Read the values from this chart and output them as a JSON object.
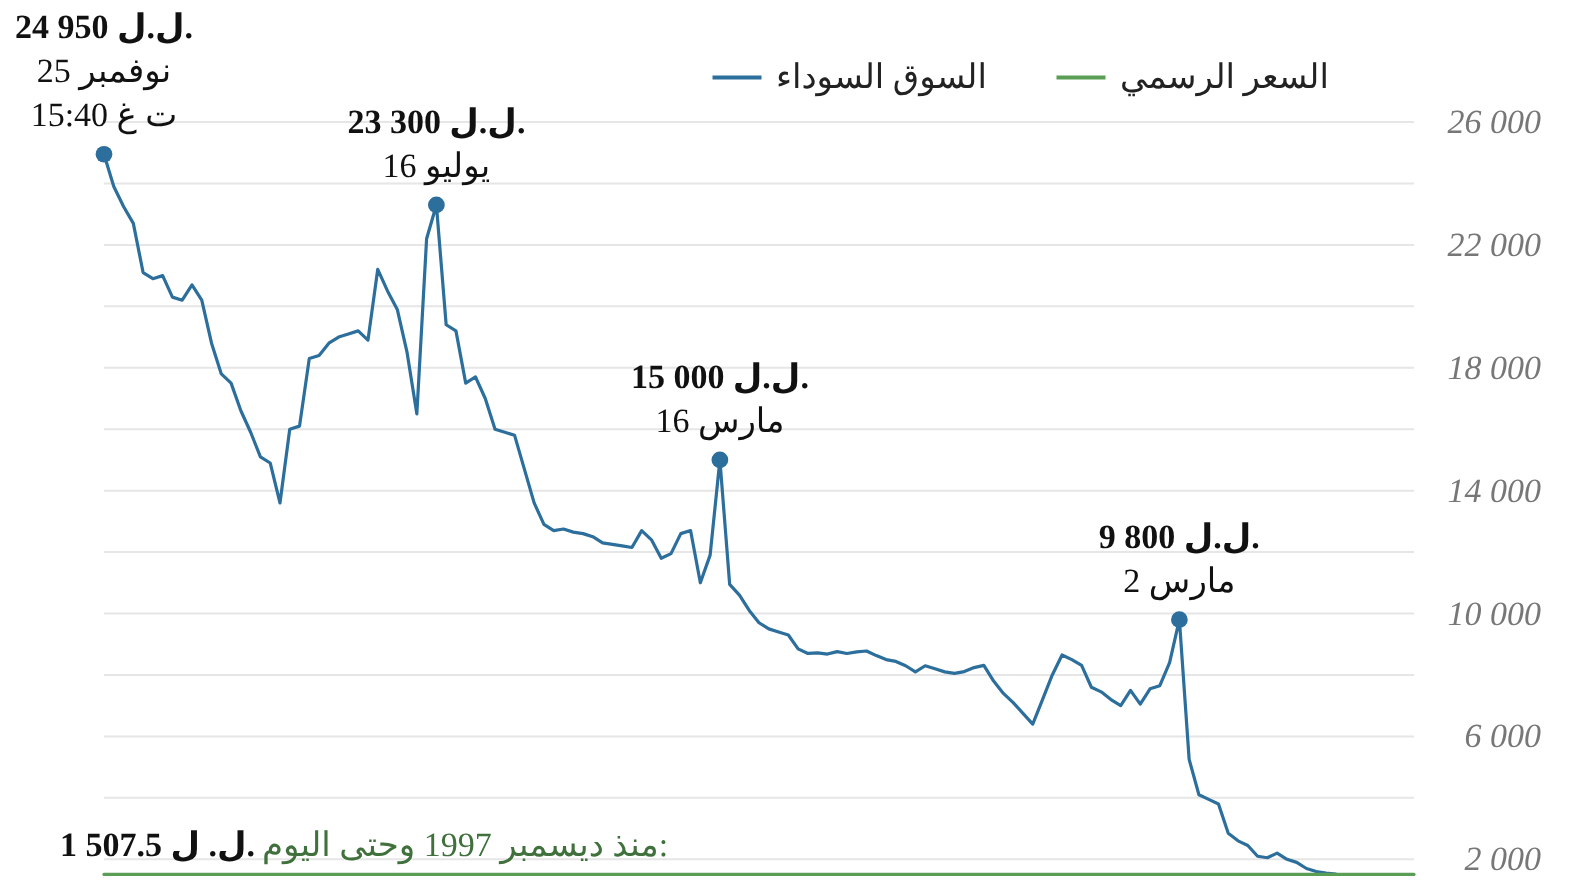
{
  "chart_data": {
    "type": "line",
    "categories": [
      null,
      null,
      null,
      null,
      null,
      null,
      null,
      null,
      null,
      null,
      null,
      null,
      null,
      null,
      null,
      null,
      null,
      null,
      null,
      null,
      null,
      null,
      null,
      null,
      null,
      null,
      null,
      null,
      null,
      null,
      null,
      null,
      null,
      null,
      null,
      null,
      null,
      null,
      null,
      null,
      null,
      null,
      null,
      null,
      null,
      null,
      null,
      null,
      null,
      null,
      null,
      null,
      null,
      null,
      null,
      null,
      null,
      null,
      null,
      null,
      null,
      null,
      null,
      null,
      null,
      null,
      null,
      null,
      null,
      null,
      null,
      null,
      null,
      null,
      null,
      null,
      null,
      null,
      null,
      null,
      null,
      null,
      null,
      null,
      null,
      null,
      null,
      null,
      null,
      null,
      null,
      null,
      null,
      null,
      null,
      null,
      null,
      null,
      null,
      null,
      null,
      null,
      null,
      null,
      null,
      null,
      null,
      null,
      null,
      null,
      null,
      null,
      null,
      null,
      null,
      null,
      null,
      null,
      null,
      null,
      null,
      null,
      null,
      null,
      null,
      null,
      null,
      null,
      null,
      null,
      null,
      null,
      null,
      null,
      null
    ],
    "series": [
      {
        "name": "السوق السوداء",
        "color": "#2c6e9c",
        "values": [
          24950,
          23900,
          23250,
          22700,
          21100,
          20900,
          21000,
          20300,
          20200,
          20700,
          20200,
          18800,
          17800,
          17500,
          16600,
          15900,
          15100,
          14900,
          13600,
          16000,
          16100,
          18300,
          18400,
          18800,
          19000,
          19100,
          19200,
          18900,
          21200,
          20500,
          19900,
          18500,
          16500,
          22200,
          23300,
          19400,
          19200,
          17500,
          17700,
          17000,
          16000,
          15900,
          15800,
          14700,
          13600,
          12900,
          12700,
          12750,
          12650,
          12600,
          12500,
          12300,
          12250,
          12200,
          12150,
          12700,
          12400,
          11800,
          11950,
          12600,
          12700,
          11000,
          11900,
          15000,
          10950,
          10600,
          10100,
          9700,
          9500,
          9400,
          9300,
          8850,
          8700,
          8720,
          8680,
          8760,
          8700,
          8750,
          8780,
          8630,
          8500,
          8440,
          8300,
          8100,
          8300,
          8200,
          8100,
          8050,
          8110,
          8240,
          8310,
          7800,
          7400,
          7100,
          6750,
          6400,
          7200,
          8000,
          8650,
          8500,
          8310,
          7600,
          7450,
          7200,
          7000,
          7500,
          7050,
          7550,
          7650,
          8400,
          9800,
          5250,
          4100,
          3950,
          3800,
          2850,
          2600,
          2450,
          2100,
          2050,
          2200,
          2000,
          1900,
          1700,
          1600,
          1550,
          1520,
          null,
          null,
          null,
          null,
          null,
          null,
          null,
          null
        ],
        "value_labels": [
          "24 950 ل.ل.",
          null,
          null,
          null,
          null,
          null,
          null,
          null,
          null,
          null,
          null,
          null,
          null,
          null,
          null,
          null,
          null,
          null,
          null,
          null,
          null,
          null,
          null,
          null,
          null,
          null,
          null,
          null,
          null,
          null,
          null,
          null,
          null,
          null,
          "23 300 ل.ل.",
          null,
          null,
          null,
          null,
          null,
          null,
          null,
          null,
          null,
          null,
          null,
          null,
          null,
          null,
          null,
          null,
          null,
          null,
          null,
          null,
          null,
          null,
          null,
          null,
          null,
          null,
          null,
          null,
          "15 000 ل.ل.",
          null,
          null,
          null,
          null,
          null,
          null,
          null,
          null,
          null,
          null,
          null,
          null,
          null,
          null,
          null,
          null,
          null,
          null,
          null,
          null,
          null,
          null,
          null,
          null,
          null,
          null,
          null,
          null,
          null,
          null,
          null,
          null,
          null,
          null,
          null,
          null,
          null,
          null,
          null,
          null,
          null,
          null,
          null,
          null,
          null,
          null,
          "9 800 ل.ل.",
          null,
          null,
          null,
          null,
          null,
          null,
          null,
          null,
          null,
          null,
          null,
          null,
          null,
          null,
          null,
          null,
          null,
          null,
          null,
          null,
          null,
          null,
          null,
          null
        ]
      },
      {
        "name": "السعر الرسمي",
        "color": "#5a9e55",
        "values": [
          1507.5,
          1507.5,
          1507.5,
          1507.5,
          1507.5,
          1507.5,
          1507.5,
          1507.5,
          1507.5,
          1507.5,
          1507.5,
          1507.5,
          1507.5,
          1507.5,
          1507.5,
          1507.5,
          1507.5,
          1507.5,
          1507.5,
          1507.5,
          1507.5,
          1507.5,
          1507.5,
          1507.5,
          1507.5,
          1507.5,
          1507.5,
          1507.5,
          1507.5,
          1507.5,
          1507.5,
          1507.5,
          1507.5,
          1507.5,
          1507.5,
          1507.5,
          1507.5,
          1507.5,
          1507.5,
          1507.5,
          1507.5,
          1507.5,
          1507.5,
          1507.5,
          1507.5,
          1507.5,
          1507.5,
          1507.5,
          1507.5,
          1507.5,
          1507.5,
          1507.5,
          1507.5,
          1507.5,
          1507.5,
          1507.5,
          1507.5,
          1507.5,
          1507.5,
          1507.5,
          1507.5,
          1507.5,
          1507.5,
          1507.5,
          1507.5,
          1507.5,
          1507.5,
          1507.5,
          1507.5,
          1507.5,
          1507.5,
          1507.5,
          1507.5,
          1507.5,
          1507.5,
          1507.5,
          1507.5,
          1507.5,
          1507.5,
          1507.5,
          1507.5,
          1507.5,
          1507.5,
          1507.5,
          1507.5,
          1507.5,
          1507.5,
          1507.5,
          1507.5,
          1507.5,
          1507.5,
          1507.5,
          1507.5,
          1507.5,
          1507.5,
          1507.5,
          1507.5,
          1507.5,
          1507.5,
          1507.5,
          1507.5,
          1507.5,
          1507.5,
          1507.5,
          1507.5,
          1507.5,
          1507.5,
          1507.5,
          1507.5,
          1507.5,
          1507.5,
          1507.5,
          1507.5,
          1507.5,
          1507.5,
          1507.5,
          1507.5,
          1507.5,
          1507.5,
          1507.5,
          1507.5,
          1507.5,
          1507.5,
          1507.5,
          1507.5,
          1507.5,
          1507.5,
          1507.5,
          1507.5,
          1507.5,
          1507.5,
          1507.5,
          1507.5,
          1507.5,
          1507.5
        ],
        "value_labels": [
          "1 507.5 ل. ل.",
          null,
          null,
          null,
          null,
          null,
          null,
          null,
          null,
          null,
          null,
          null,
          null,
          null,
          null,
          null,
          null,
          null,
          null,
          null,
          null,
          null,
          null,
          null,
          null,
          null,
          null,
          null,
          null,
          null,
          null,
          null,
          null,
          null,
          null,
          null,
          null,
          null,
          null,
          null,
          null,
          null,
          null,
          null,
          null,
          null,
          null,
          null,
          null,
          null,
          null,
          null,
          null,
          null,
          null,
          null,
          null,
          null,
          null,
          null,
          null,
          null,
          null,
          null,
          null,
          null,
          null,
          null,
          null,
          null,
          null,
          null,
          null,
          null,
          null,
          null,
          null,
          null,
          null,
          null,
          null,
          null,
          null,
          null,
          null,
          null,
          null,
          null,
          null,
          null,
          null,
          null,
          null,
          null,
          null,
          null,
          null,
          null,
          null,
          null,
          null,
          null,
          null,
          null,
          null,
          null,
          null,
          null,
          null,
          null,
          null,
          null,
          null,
          null,
          null,
          null,
          null,
          null,
          null,
          null,
          null,
          null,
          null,
          null,
          null,
          null,
          null,
          null,
          null,
          null,
          null,
          null,
          null,
          null,
          null
        ]
      }
    ],
    "ylim": [
      1000,
      26000
    ],
    "yticks": [
      {
        "value": 2000,
        "label": "2 000"
      },
      {
        "value": 4000,
        "label": null
      },
      {
        "value": 6000,
        "label": "6 000"
      },
      {
        "value": 8000,
        "label": null
      },
      {
        "value": 10000,
        "label": "10 000"
      },
      {
        "value": 12000,
        "label": null
      },
      {
        "value": 14000,
        "label": "14 000"
      },
      {
        "value": 16000,
        "label": null
      },
      {
        "value": 18000,
        "label": "18 000"
      },
      {
        "value": 20000,
        "label": null
      },
      {
        "value": 22000,
        "label": "22 000"
      },
      {
        "value": 24000,
        "label": null
      },
      {
        "value": 26000,
        "label": "26 000"
      }
    ],
    "grid": "y",
    "legend": "top",
    "line_style": "solid",
    "marker": "none",
    "annotations": [
      {
        "text": "25 نوفمبر",
        "y": 24950
      },
      {
        "text": "15:40 ت غ",
        "y": 24950
      },
      {
        "text": "16 يوليو",
        "y": 23300
      },
      {
        "text": "16 مارس",
        "y": 15000
      },
      {
        "text": "2 مارس",
        "y": 9800
      },
      {
        "text": "منذ ديسمبر 1997 وحتى اليوم:",
        "y": 1507.5
      }
    ]
  }
}
